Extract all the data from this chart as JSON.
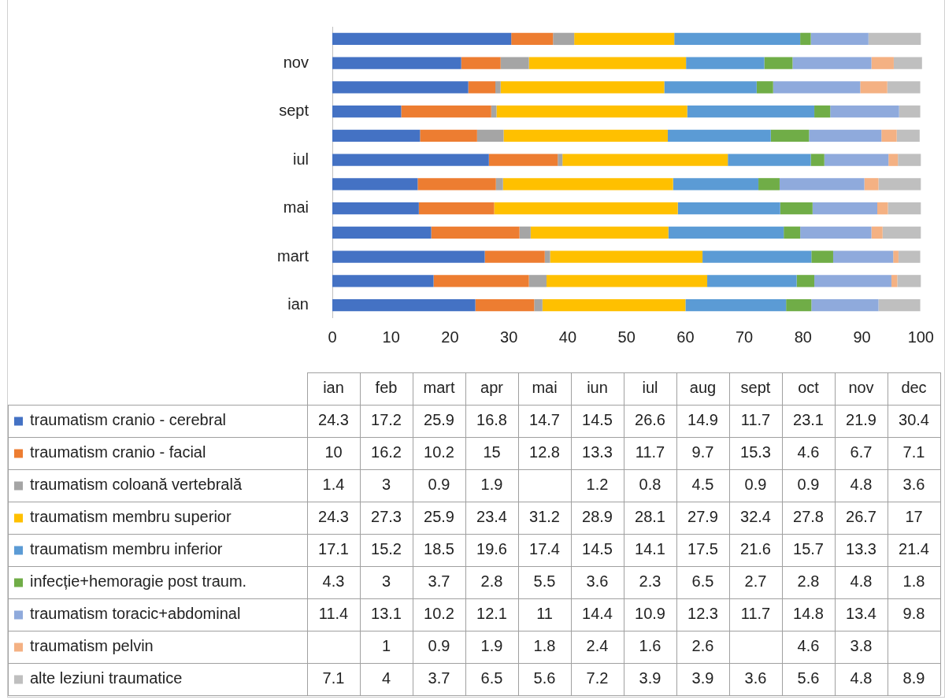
{
  "chart_data": [
    {
      "type": "bar",
      "orientation": "horizontal",
      "stacked": true,
      "categories": [
        null,
        "nov",
        null,
        "sept",
        null,
        "iul",
        null,
        "mai",
        null,
        "mart",
        null,
        "ian"
      ],
      "xlim": [
        0,
        100
      ],
      "xticks": [
        0,
        10,
        20,
        30,
        40,
        50,
        60,
        70,
        80,
        90,
        100
      ],
      "series": [
        {
          "color": "#4472c4",
          "values": [
            30.4,
            21.9,
            23.1,
            11.7,
            14.9,
            26.6,
            14.5,
            14.7,
            16.8,
            25.9,
            17.2,
            24.3
          ]
        },
        {
          "color": "#ed7d31",
          "values": [
            7.1,
            6.7,
            4.6,
            15.3,
            9.7,
            11.7,
            13.3,
            12.8,
            15,
            10.2,
            16.2,
            10
          ]
        },
        {
          "color": "#a5a5a5",
          "values": [
            3.6,
            4.8,
            0.9,
            0.9,
            4.5,
            0.8,
            1.2,
            null,
            1.9,
            0.9,
            3,
            1.4
          ]
        },
        {
          "color": "#ffc000",
          "values": [
            17,
            26.7,
            27.8,
            32.4,
            27.9,
            28.1,
            28.9,
            31.2,
            23.4,
            25.9,
            27.3,
            24.3
          ]
        },
        {
          "color": "#5b9bd5",
          "values": [
            21.4,
            13.3,
            15.7,
            21.6,
            17.5,
            14.1,
            14.5,
            17.4,
            19.6,
            18.5,
            15.2,
            17.1
          ]
        },
        {
          "color": "#70ad47",
          "values": [
            1.8,
            4.8,
            2.8,
            2.7,
            6.5,
            2.3,
            3.6,
            5.5,
            2.8,
            3.7,
            3,
            4.3
          ]
        },
        {
          "color": "#8faadc",
          "values": [
            9.8,
            13.4,
            14.8,
            11.7,
            12.3,
            10.9,
            14.4,
            11,
            12.1,
            10.2,
            13.1,
            11.4
          ]
        },
        {
          "color": "#f4b183",
          "values": [
            null,
            3.8,
            4.6,
            null,
            2.6,
            1.6,
            2.4,
            1.8,
            1.9,
            0.9,
            1,
            null
          ]
        },
        {
          "color": "#bfbfbf",
          "values": [
            8.9,
            4.8,
            5.6,
            3.6,
            3.9,
            3.9,
            7.2,
            5.6,
            6.5,
            3.7,
            4,
            7.1
          ]
        }
      ]
    },
    {
      "type": "other",
      "data_labels": true,
      "categories": [
        "ian",
        "feb",
        "mart",
        "apr",
        "mai",
        "iun",
        "iul",
        "aug",
        "sept",
        "oct",
        "nov",
        "dec"
      ],
      "series": [
        {
          "name": "traumatism cranio - cerebral",
          "color": "#4472c4",
          "values": [
            24.3,
            17.2,
            25.9,
            16.8,
            14.7,
            14.5,
            26.6,
            14.9,
            11.7,
            23.1,
            21.9,
            30.4
          ]
        },
        {
          "name": "traumatism cranio - facial",
          "color": "#ed7d31",
          "values": [
            10,
            16.2,
            10.2,
            15,
            12.8,
            13.3,
            11.7,
            9.7,
            15.3,
            4.6,
            6.7,
            7.1
          ]
        },
        {
          "name": "traumatism coloană vertebrală",
          "color": "#a5a5a5",
          "values": [
            1.4,
            3,
            0.9,
            1.9,
            null,
            1.2,
            0.8,
            4.5,
            0.9,
            0.9,
            4.8,
            3.6
          ]
        },
        {
          "name": "traumatism membru superior",
          "color": "#ffc000",
          "values": [
            24.3,
            27.3,
            25.9,
            23.4,
            31.2,
            28.9,
            28.1,
            27.9,
            32.4,
            27.8,
            26.7,
            17
          ]
        },
        {
          "name": "traumatism membru inferior",
          "color": "#5b9bd5",
          "values": [
            17.1,
            15.2,
            18.5,
            19.6,
            17.4,
            14.5,
            14.1,
            17.5,
            21.6,
            15.7,
            13.3,
            21.4
          ]
        },
        {
          "name": "infecție+hemoragie post traum.",
          "color": "#70ad47",
          "values": [
            4.3,
            3,
            3.7,
            2.8,
            5.5,
            3.6,
            2.3,
            6.5,
            2.7,
            2.8,
            4.8,
            1.8
          ]
        },
        {
          "name": "traumatism toracic+abdominal",
          "color": "#8faadc",
          "values": [
            11.4,
            13.1,
            10.2,
            12.1,
            11,
            14.4,
            10.9,
            12.3,
            11.7,
            14.8,
            13.4,
            9.8
          ]
        },
        {
          "name": "traumatism pelvin",
          "color": "#f4b183",
          "values": [
            null,
            1,
            0.9,
            1.9,
            1.8,
            2.4,
            1.6,
            2.6,
            null,
            4.6,
            3.8,
            null
          ]
        },
        {
          "name": "alte leziuni traumatice",
          "color": "#bfbfbf",
          "values": [
            7.1,
            4,
            3.7,
            6.5,
            5.6,
            7.2,
            3.9,
            3.9,
            3.6,
            5.6,
            4.8,
            8.9
          ]
        }
      ]
    }
  ]
}
